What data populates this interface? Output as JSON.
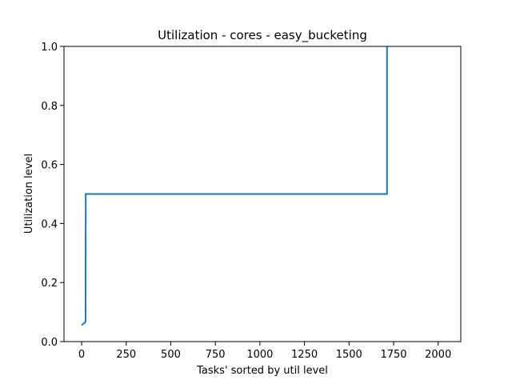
{
  "chart_data": {
    "type": "line",
    "title": "Utilization - cores - easy_bucketing",
    "xlabel": "Tasks' sorted by util level",
    "ylabel": "Utilization level",
    "xlim": [
      -99,
      2127
    ],
    "ylim": [
      0,
      1.0
    ],
    "xticks": [
      0,
      250,
      500,
      750,
      1000,
      1250,
      1500,
      1750,
      2000
    ],
    "yticks": [
      0.0,
      0.2,
      0.4,
      0.6,
      0.8,
      1.0
    ],
    "xtick_labels": [
      "0",
      "250",
      "500",
      "750",
      "1000",
      "1250",
      "1500",
      "1750",
      "2000"
    ],
    "ytick_labels": [
      "0.0",
      "0.2",
      "0.4",
      "0.6",
      "0.8",
      "1.0"
    ],
    "grid": false,
    "series": [
      {
        "color": "#1f77b4",
        "x": [
          0,
          5,
          10,
          15,
          20,
          22,
          23,
          24,
          1712,
          1713,
          1713
        ],
        "y": [
          0.055,
          0.058,
          0.061,
          0.063,
          0.065,
          0.07,
          0.5,
          0.5,
          0.5,
          0.5,
          1.0
        ]
      }
    ]
  }
}
